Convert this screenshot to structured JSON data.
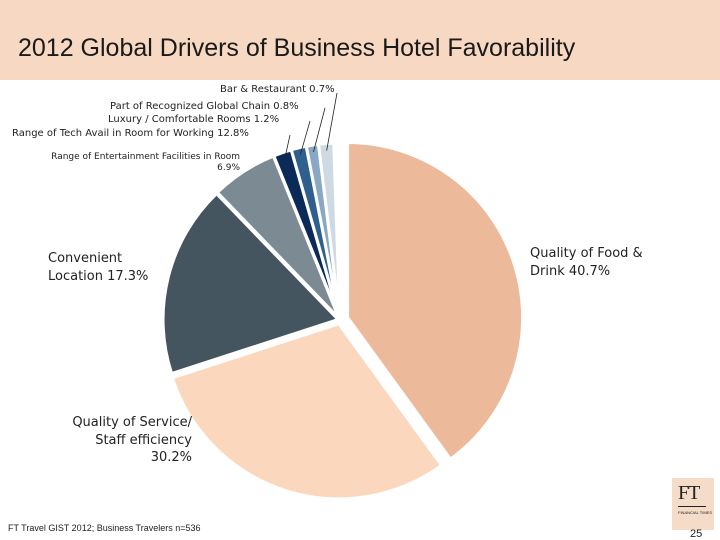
{
  "slide": {
    "title": "2012 Global Drivers of Business Hotel Favorability",
    "source": "FT Travel GIST 2012; Business Travelers n=536",
    "page_number": "25",
    "logo_text": "FT",
    "logo_subtext": "FINANCIAL TIMES"
  },
  "colors": {
    "header_band": "#f7d9c3",
    "food_drink": "#ecb99a",
    "service": "#fbd8bd",
    "location": "#445560",
    "entertainment": "#7c8a93",
    "tech": "#0c2a57",
    "luxury": "#2f5f8c",
    "chain": "#8aa8c4",
    "bar": "#cfd9e2"
  },
  "chart_data": {
    "type": "pie",
    "title": "2012 Global Drivers of Business Hotel Favorability",
    "slices": [
      {
        "label": "Quality of Food & Drink",
        "value": 40.7,
        "text": "Quality of Food & Drink 40.7%"
      },
      {
        "label": "Quality of Service/ Staff efficiency",
        "value": 30.2,
        "text": "Quality of Service/ Staff efficiency 30.2%"
      },
      {
        "label": "Convenient Location",
        "value": 17.3,
        "text": "Convenient Location 17.3%"
      },
      {
        "label": "Range of Entertainment Facilities in Room",
        "value": 6.9,
        "text": "Range of Entertainment Facilities in Room 6.9%"
      },
      {
        "label": "Range of Tech Avail in Room for Working",
        "value": 12.8,
        "text": "Range of Tech Avail in Room for Working 12.8%"
      },
      {
        "label": "Luxury / Comfortable Rooms",
        "value": 1.2,
        "text": "Luxury / Comfortable Rooms 1.2%"
      },
      {
        "label": "Part of Recognized Global Chain",
        "value": 0.8,
        "text": "Part of Recognized Global Chain 0.8%"
      },
      {
        "label": "Bar & Restaurant",
        "value": 0.7,
        "text": "Bar & Restaurant 0.7%"
      }
    ]
  },
  "labels": {
    "food_line1": "Quality of Food &",
    "food_line2": "Drink 40.7%",
    "service_line1": "Quality of Service/",
    "service_line2": "Staff efficiency",
    "service_line3": "30.2%",
    "location_line1": "Convenient",
    "location_line2": "Location 17.3%",
    "entertainment_line1": "Range of Entertainment Facilities in Room",
    "entertainment_line2": "6.9%",
    "tech": "Range of Tech Avail in Room for Working  12.8%",
    "luxury": "Luxury / Comfortable Rooms 1.2%",
    "chain": "Part of Recognized Global Chain 0.8%",
    "bar": "Bar & Restaurant 0.7%"
  }
}
